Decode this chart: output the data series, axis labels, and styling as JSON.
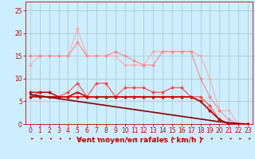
{
  "bg_color": "#cceeff",
  "grid_color": "#aacccc",
  "xlabel": "Vent moyen/en rafales ( km/h )",
  "xlabel_color": "#cc0000",
  "xlabel_fontsize": 6.5,
  "tick_color": "#cc0000",
  "tick_fontsize": 5.5,
  "ylim": [
    0,
    27
  ],
  "xlim": [
    -0.5,
    23.5
  ],
  "yticks": [
    0,
    5,
    10,
    15,
    20,
    25
  ],
  "xticks": [
    0,
    1,
    2,
    3,
    4,
    5,
    6,
    7,
    8,
    9,
    10,
    11,
    12,
    13,
    14,
    15,
    16,
    17,
    18,
    19,
    20,
    21,
    22,
    23
  ],
  "line1_x": [
    0,
    1,
    2,
    3,
    4,
    5,
    6,
    7,
    8,
    9,
    10,
    11,
    12,
    13,
    14,
    15,
    16,
    17,
    18,
    19,
    20,
    21,
    22,
    23
  ],
  "line1_y": [
    13,
    15,
    15,
    15,
    15,
    21,
    15,
    15,
    15,
    15,
    13,
    13,
    13,
    16,
    16,
    16,
    16,
    16,
    15,
    10,
    3,
    3,
    0,
    0
  ],
  "line1_color": "#ffaaaa",
  "line1_marker": "D",
  "line1_ms": 1.5,
  "line1_lw": 0.8,
  "line2_x": [
    0,
    1,
    2,
    3,
    4,
    5,
    6,
    7,
    8,
    9,
    10,
    11,
    12,
    13,
    14,
    15,
    16,
    17,
    18,
    19,
    20,
    21,
    22,
    23
  ],
  "line2_y": [
    15,
    15,
    15,
    15,
    15,
    18,
    15,
    15,
    15,
    16,
    15,
    14,
    13,
    13,
    16,
    16,
    16,
    16,
    10,
    6,
    3,
    1,
    0,
    0
  ],
  "line2_color": "#ff8888",
  "line2_marker": "D",
  "line2_ms": 1.5,
  "line2_lw": 0.8,
  "line3_x": [
    0,
    1,
    2,
    3,
    4,
    5,
    6,
    7,
    8,
    9,
    10,
    11,
    12,
    13,
    14,
    15,
    16,
    17,
    18,
    19,
    20,
    21,
    22,
    23
  ],
  "line3_y": [
    6,
    7,
    7,
    6,
    7,
    9,
    6,
    9,
    9,
    6,
    8,
    8,
    8,
    7,
    7,
    8,
    8,
    6,
    6,
    4,
    1,
    0,
    0,
    0
  ],
  "line3_color": "#ff4444",
  "line3_marker": "D",
  "line3_ms": 1.5,
  "line3_lw": 0.8,
  "line4_x": [
    0,
    1,
    2,
    3,
    4,
    5,
    6,
    7,
    8,
    9,
    10,
    11,
    12,
    13,
    14,
    15,
    16,
    17,
    18,
    19,
    20,
    21,
    22,
    23
  ],
  "line4_y": [
    6,
    6,
    6,
    6,
    6,
    7,
    6,
    6,
    6,
    6,
    6,
    6,
    6,
    6,
    6,
    6,
    6,
    6,
    5,
    3,
    1,
    0,
    0,
    0
  ],
  "line4_color": "#cc0000",
  "line4_marker": "^",
  "line4_ms": 1.5,
  "line4_lw": 1.2,
  "line5_x": [
    0,
    1,
    2,
    3,
    4,
    5,
    6,
    7,
    8,
    9,
    10,
    11,
    12,
    13,
    14,
    15,
    16,
    17,
    18,
    19,
    20,
    21,
    22,
    23
  ],
  "line5_y": [
    7,
    7,
    7,
    6,
    6,
    6,
    6,
    6,
    6,
    6,
    6,
    6,
    6,
    6,
    6,
    6,
    6,
    6,
    5,
    3,
    1,
    0,
    0,
    0
  ],
  "line5_color": "#cc0000",
  "line5_marker": "D",
  "line5_ms": 1.5,
  "line5_lw": 1.0,
  "line6_x": [
    0,
    1,
    2,
    3,
    4,
    5,
    6,
    7,
    8,
    9,
    10,
    11,
    12,
    13,
    14,
    15,
    16,
    17,
    18,
    19,
    20,
    21,
    22,
    23
  ],
  "line6_y": [
    6.5,
    6.2,
    5.9,
    5.6,
    5.3,
    5.0,
    4.7,
    4.4,
    4.1,
    3.8,
    3.5,
    3.2,
    2.9,
    2.6,
    2.3,
    2.0,
    1.7,
    1.4,
    1.1,
    0.8,
    0.5,
    0.3,
    0.1,
    0.0
  ],
  "line6_color": "#880000",
  "line6_marker": null,
  "line6_ms": 0,
  "line6_lw": 1.2,
  "arrow_color": "#cc0000",
  "arrows_x": [
    0,
    1,
    2,
    3,
    4,
    5,
    6,
    7,
    8,
    9,
    10,
    11,
    12,
    13,
    14,
    15,
    16,
    17,
    18,
    19,
    20,
    21,
    22,
    23
  ]
}
